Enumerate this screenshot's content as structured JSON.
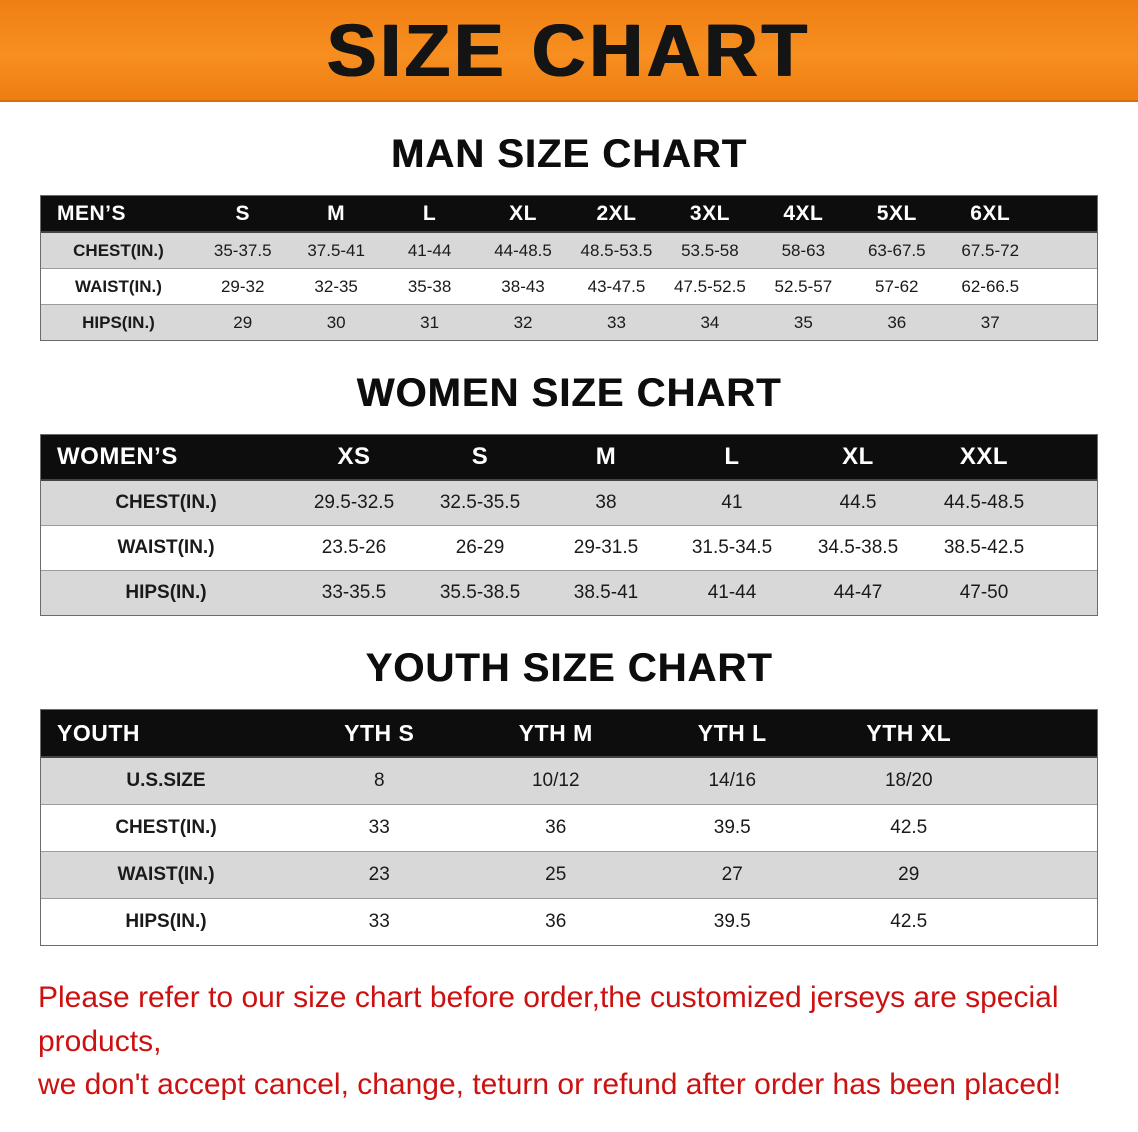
{
  "banner": {
    "title": "SIZE CHART"
  },
  "colors": {
    "banner_bg": "#f6871f",
    "table_header_bg": "#0d0d0d",
    "row_alt_bg": "#d8d8d8",
    "notice_text": "#cc1111"
  },
  "sections": {
    "men": {
      "heading": "MAN SIZE CHART",
      "header": {
        "label": "MEN’S",
        "sizes": [
          "S",
          "M",
          "L",
          "XL",
          "2XL",
          "3XL",
          "4XL",
          "5XL",
          "6XL"
        ]
      },
      "rows": [
        {
          "label": "CHEST(IN.)",
          "values": [
            "35-37.5",
            "37.5-41",
            "41-44",
            "44-48.5",
            "48.5-53.5",
            "53.5-58",
            "58-63",
            "63-67.5",
            "67.5-72"
          ]
        },
        {
          "label": "WAIST(IN.)",
          "values": [
            "29-32",
            "32-35",
            "35-38",
            "38-43",
            "43-47.5",
            "47.5-52.5",
            "52.5-57",
            "57-62",
            "62-66.5"
          ]
        },
        {
          "label": "HIPS(IN.)",
          "values": [
            "29",
            "30",
            "31",
            "32",
            "33",
            "34",
            "35",
            "36",
            "37"
          ]
        }
      ]
    },
    "women": {
      "heading": "WOMEN SIZE CHART",
      "header": {
        "label": "WOMEN’S",
        "sizes": [
          "XS",
          "S",
          "M",
          "L",
          "XL",
          "XXL"
        ]
      },
      "rows": [
        {
          "label": "CHEST(IN.)",
          "values": [
            "29.5-32.5",
            "32.5-35.5",
            "38",
            "41",
            "44.5",
            "44.5-48.5"
          ]
        },
        {
          "label": "WAIST(IN.)",
          "values": [
            "23.5-26",
            "26-29",
            "29-31.5",
            "31.5-34.5",
            "34.5-38.5",
            "38.5-42.5"
          ]
        },
        {
          "label": "HIPS(IN.)",
          "values": [
            "33-35.5",
            "35.5-38.5",
            "38.5-41",
            "41-44",
            "44-47",
            "47-50"
          ]
        }
      ]
    },
    "youth": {
      "heading": "YOUTH SIZE CHART",
      "header": {
        "label": "YOUTH",
        "sizes": [
          "YTH S",
          "YTH M",
          "YTH L",
          "YTH XL"
        ]
      },
      "rows": [
        {
          "label": "U.S.SIZE",
          "values": [
            "8",
            "10/12",
            "14/16",
            "18/20"
          ]
        },
        {
          "label": "CHEST(IN.)",
          "values": [
            "33",
            "36",
            "39.5",
            "42.5"
          ]
        },
        {
          "label": "WAIST(IN.)",
          "values": [
            "23",
            "25",
            "27",
            "29"
          ]
        },
        {
          "label": "HIPS(IN.)",
          "values": [
            "33",
            "36",
            "39.5",
            "42.5"
          ]
        }
      ]
    }
  },
  "footer": {
    "line1": "Please refer to our size chart before order,the customized jerseys are special products,",
    "line2": "we don't accept cancel, change, teturn or refund after order has been placed!"
  }
}
